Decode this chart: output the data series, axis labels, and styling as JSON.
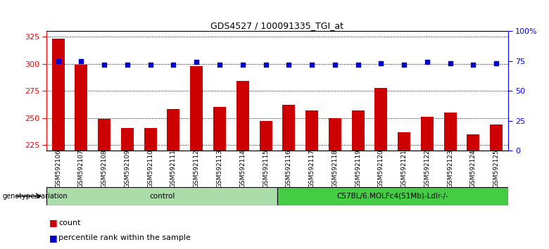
{
  "title": "GDS4527 / 100091335_TGI_at",
  "samples": [
    "GSM592106",
    "GSM592107",
    "GSM592108",
    "GSM592109",
    "GSM592110",
    "GSM592111",
    "GSM592112",
    "GSM592113",
    "GSM592114",
    "GSM592115",
    "GSM592116",
    "GSM592117",
    "GSM592118",
    "GSM592119",
    "GSM592120",
    "GSM592121",
    "GSM592122",
    "GSM592123",
    "GSM592124",
    "GSM592125"
  ],
  "counts": [
    323,
    299,
    249,
    241,
    241,
    258,
    298,
    260,
    284,
    247,
    262,
    257,
    250,
    257,
    278,
    237,
    251,
    255,
    235,
    244
  ],
  "percentile_ranks": [
    75,
    75,
    72,
    72,
    72,
    72,
    74,
    72,
    72,
    72,
    72,
    72,
    72,
    72,
    73,
    72,
    74,
    73,
    72,
    73
  ],
  "groups": [
    {
      "label": "control",
      "start": 0,
      "end": 10,
      "color": "#aaddaa"
    },
    {
      "label": "C57BL/6.MOLFc4(51Mb)-Ldlr-/-",
      "start": 10,
      "end": 20,
      "color": "#44cc44"
    }
  ],
  "ylim_left": [
    220,
    330
  ],
  "ylim_right": [
    0,
    100
  ],
  "yticks_left": [
    225,
    250,
    275,
    300,
    325
  ],
  "yticks_right": [
    0,
    25,
    50,
    75,
    100
  ],
  "bar_color": "#CC0000",
  "dot_color": "#0000CC",
  "plot_bg_color": "#ffffff",
  "xtick_bg_color": "#cccccc"
}
